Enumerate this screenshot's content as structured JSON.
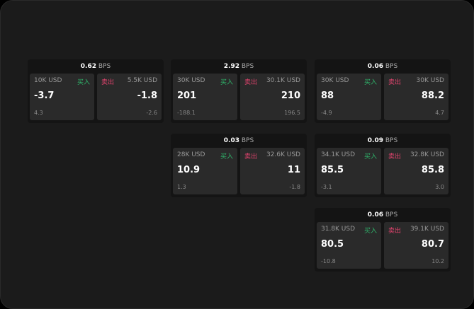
{
  "labels": {
    "buy": "买入",
    "sell": "卖出",
    "unit": "BPS"
  },
  "cards": [
    {
      "spread": "0.62",
      "bid_size": "10K USD",
      "bid": "-3.7",
      "bid_change": "4.3",
      "ask_size": "5.5K USD",
      "ask": "-1.8",
      "ask_change": "-2.6"
    },
    {
      "spread": "2.92",
      "bid_size": "30K USD",
      "bid": "201",
      "bid_change": "-188.1",
      "ask_size": "30.1K USD",
      "ask": "210",
      "ask_change": "196.5"
    },
    {
      "spread": "0.06",
      "bid_size": "30K USD",
      "bid": "88",
      "bid_change": "-4.9",
      "ask_size": "30K USD",
      "ask": "88.2",
      "ask_change": "4.7"
    },
    {
      "spread": "0.03",
      "bid_size": "28K USD",
      "bid": "10.9",
      "bid_change": "1.3",
      "ask_size": "32.6K USD",
      "ask": "11",
      "ask_change": "-1.8"
    },
    {
      "spread": "0.09",
      "bid_size": "34.1K USD",
      "bid": "85.5",
      "bid_change": "-3.1",
      "ask_size": "32.8K USD",
      "ask": "85.8",
      "ask_change": "3.0"
    },
    {
      "spread": "0.06",
      "bid_size": "31.8K USD",
      "bid": "80.5",
      "bid_change": "-10.8",
      "ask_size": "39.1K USD",
      "ask": "80.7",
      "ask_change": "10.2"
    }
  ]
}
